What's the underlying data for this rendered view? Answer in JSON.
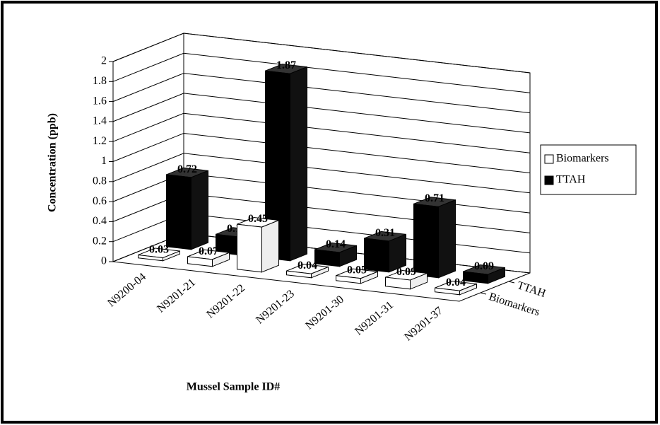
{
  "chart_data": {
    "type": "bar3d",
    "x_label": "Mussel Sample ID#",
    "y_label": "Concentration (ppb)",
    "categories": [
      "N9200-04",
      "N9201-21",
      "N9201-22",
      "N9201-23",
      "N9201-30",
      "N9201-31",
      "N9201-37"
    ],
    "series": [
      {
        "name": "Biomarkers",
        "color": "#ffffff",
        "values": [
          0.03,
          0.07,
          0.45,
          0.04,
          0.05,
          0.09,
          0.04
        ]
      },
      {
        "name": "TTAH",
        "color": "#000000",
        "values": [
          0.72,
          0.18,
          1.87,
          0.14,
          0.31,
          0.71,
          0.09
        ]
      }
    ],
    "ylim": [
      0,
      2
    ],
    "yticks": [
      0,
      0.2,
      0.4,
      0.6,
      0.8,
      1,
      1.2,
      1.4,
      1.6,
      1.8,
      2
    ],
    "grid": true,
    "legend": "right"
  }
}
